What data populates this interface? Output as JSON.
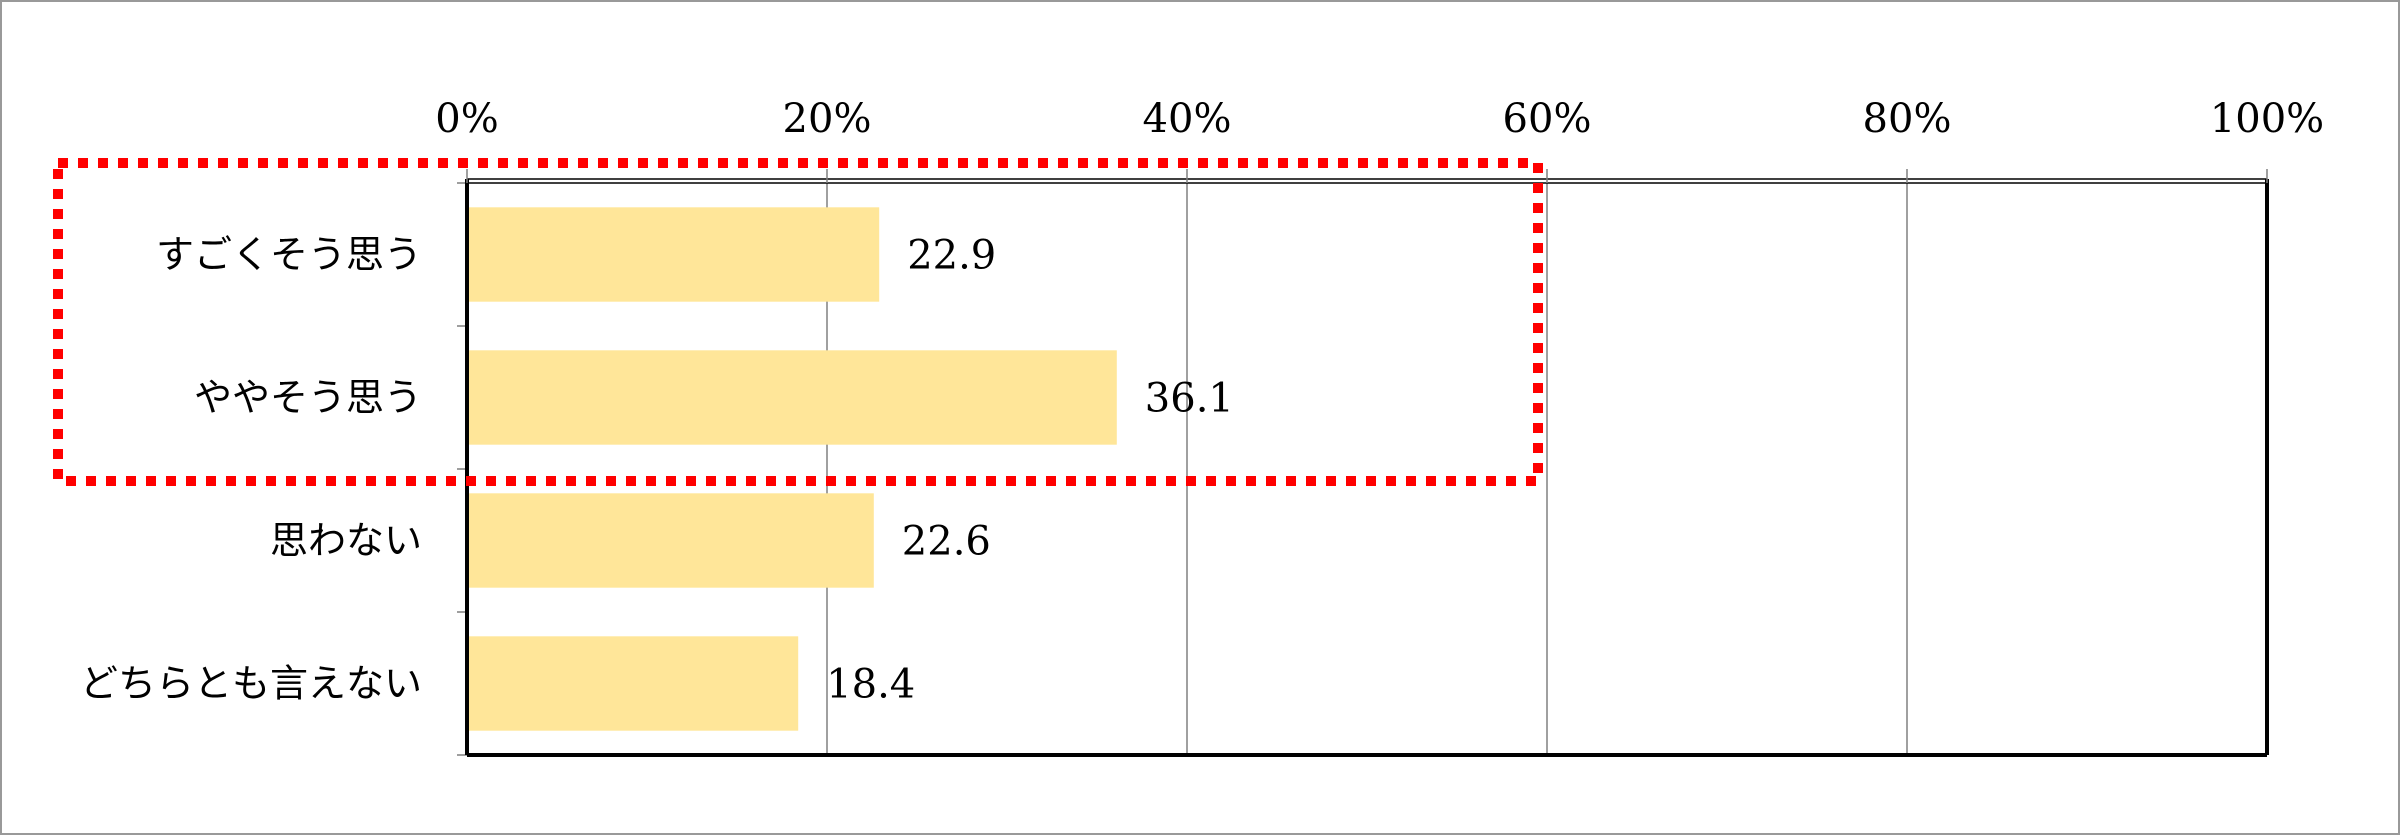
{
  "chart_data": {
    "type": "bar",
    "orientation": "horizontal",
    "categories": [
      "すごくそう思う",
      "ややそう思う",
      "思わない",
      "どちらとも言えない"
    ],
    "values": [
      22.9,
      36.1,
      22.6,
      18.4
    ],
    "value_labels": [
      "22.9",
      "36.1",
      "22.6",
      "18.4"
    ],
    "xlim": [
      0,
      100
    ],
    "x_ticks": [
      0,
      20,
      40,
      60,
      80,
      100
    ],
    "x_tick_labels": [
      "0%",
      "20%",
      "40%",
      "60%",
      "80%",
      "100%"
    ],
    "x_axis_position": "top",
    "grid": true,
    "legend": "none",
    "highlight": {
      "categories": [
        "すごくそう思う",
        "ややそう思う"
      ],
      "style": "dotted"
    },
    "colors": {
      "bar": "#FFE699",
      "highlight": "#FF0000",
      "grid": "#808080",
      "frame": "#000000"
    }
  }
}
